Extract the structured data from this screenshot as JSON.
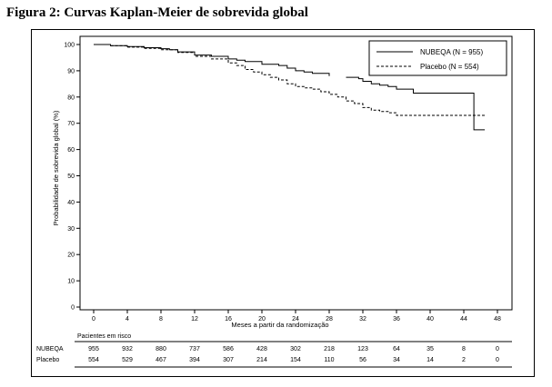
{
  "figure_title": "Figura 2: Curvas Kaplan-Meier de sobrevida global",
  "chart_data": {
    "type": "line",
    "title": "Figura 2: Curvas Kaplan-Meier de sobrevida global",
    "xlabel": "Meses a partir da randomização",
    "ylabel": "Probabilidade de sobrevida global (%)",
    "xlim": [
      0,
      48
    ],
    "ylim": [
      0,
      100
    ],
    "x_ticks": [
      0,
      4,
      8,
      12,
      16,
      20,
      24,
      28,
      32,
      36,
      40,
      44,
      48
    ],
    "y_ticks": [
      0,
      10,
      20,
      30,
      40,
      50,
      60,
      70,
      80,
      90,
      100
    ],
    "legend_position": "top-right",
    "series": [
      {
        "name": "NUBEQA (N = 955)",
        "style": "solid",
        "color": "#000000",
        "x": [
          0,
          2,
          4,
          6,
          8,
          9,
          10,
          12,
          14,
          16,
          17,
          18,
          20,
          22,
          23,
          24,
          25,
          26,
          28
        ],
        "y": [
          100,
          99.6,
          99.2,
          98.8,
          98.4,
          98,
          97.2,
          96,
          95.5,
          94.5,
          94,
          93.5,
          92.5,
          92,
          91,
          90,
          89.5,
          89,
          88
        ],
        "segments": [
          {
            "x": [
              30,
              31.5,
              32,
              33,
              34,
              35,
              36,
              38,
              40,
              42,
              44,
              45.2,
              46.5
            ],
            "y": [
              87.5,
              87,
              86,
              85,
              84.5,
              84,
              83,
              81.5,
              81.5,
              81.5,
              81.5,
              67.5,
              67.5
            ]
          }
        ]
      },
      {
        "name": "Placebo (N = 554)",
        "style": "dashed",
        "color": "#000000",
        "x": [
          0,
          2,
          4,
          6,
          8,
          10,
          12,
          14,
          16,
          17,
          18,
          19,
          20,
          21,
          22,
          23,
          24,
          25,
          26,
          27,
          28,
          29,
          30,
          31,
          32,
          33,
          34,
          35,
          36,
          38,
          40,
          42,
          44,
          46.5
        ],
        "y": [
          100,
          99.5,
          99,
          98.5,
          98,
          97,
          95.5,
          94.5,
          93,
          92,
          90.5,
          89.5,
          88.5,
          87.5,
          86.5,
          85,
          84,
          83.5,
          83,
          82,
          81,
          80,
          78.5,
          77.5,
          76,
          75,
          74.5,
          74,
          73,
          73,
          73,
          73,
          73,
          73
        ]
      }
    ],
    "risk_table": {
      "header": "Pacientes em risco",
      "rows": [
        {
          "label": "NUBEQA",
          "values": [
            "955",
            "932",
            "880",
            "737",
            "586",
            "428",
            "302",
            "218",
            "123",
            "64",
            "35",
            "8",
            "0"
          ]
        },
        {
          "label": "Placebo",
          "values": [
            "554",
            "529",
            "467",
            "394",
            "307",
            "214",
            "154",
            "110",
            "56",
            "34",
            "14",
            "2",
            "0"
          ]
        }
      ]
    }
  }
}
